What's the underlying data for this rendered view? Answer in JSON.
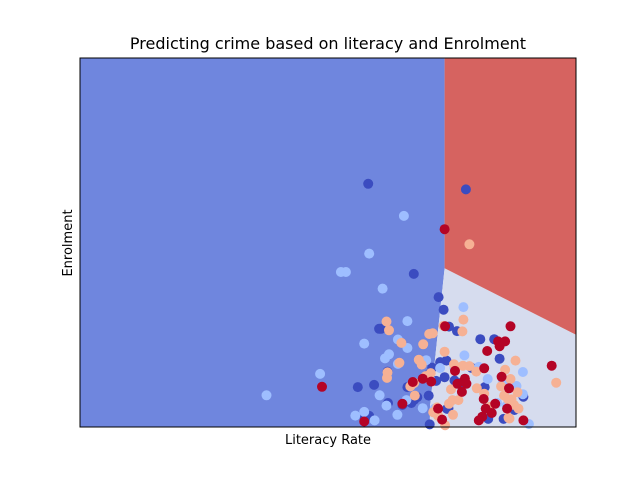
{
  "chart_data": {
    "type": "scatter",
    "title": "Predicting crime based on literacy and Enrolment",
    "xlabel": "Literacy Rate",
    "ylabel": "Enrolment",
    "ticks_shown": false,
    "grid": false,
    "legend": "none",
    "xlim": [
      0,
      100
    ],
    "ylim": [
      0,
      100
    ],
    "colors": {
      "region_low": "#6f86de",
      "region_mid": "#d6dcee",
      "region_high": "#d66360",
      "class_0": "#3b4cc0",
      "class_1": "#9ebeff",
      "class_2": "#f6b194",
      "class_3": "#b40426"
    },
    "decision_regions": [
      {
        "name": "low",
        "color_key": "region_low",
        "polygon": [
          [
            0,
            0
          ],
          [
            70.5,
            0
          ],
          [
            70.6,
            6
          ],
          [
            71.4,
            16
          ],
          [
            73.5,
            43
          ],
          [
            73.5,
            100
          ],
          [
            0,
            100
          ]
        ]
      },
      {
        "name": "mid",
        "color_key": "region_mid",
        "polygon": [
          [
            70.5,
            0
          ],
          [
            100,
            0
          ],
          [
            100,
            25
          ],
          [
            73.5,
            43
          ],
          [
            71.4,
            16
          ],
          [
            70.6,
            6
          ]
        ]
      },
      {
        "name": "high",
        "color_key": "region_high",
        "polygon": [
          [
            73.5,
            43
          ],
          [
            100,
            25
          ],
          [
            100,
            100
          ],
          [
            73.5,
            100
          ]
        ]
      }
    ],
    "series": [
      {
        "class": 0,
        "color_key": "class_0",
        "points": [
          [
            58.1,
            65.9
          ],
          [
            67.3,
            41.5
          ],
          [
            77.8,
            64.4
          ],
          [
            60.3,
            26.6
          ],
          [
            60.7,
            26.6
          ],
          [
            56.0,
            10.8
          ],
          [
            59.3,
            11.4
          ],
          [
            62.1,
            6.5
          ],
          [
            58.3,
            3.0
          ],
          [
            57.3,
            3.0
          ],
          [
            67.4,
            7.4
          ],
          [
            66.8,
            6.5
          ],
          [
            71.0,
            16.1
          ],
          [
            72.6,
            17.6
          ],
          [
            76.0,
            26.0
          ],
          [
            73.3,
            31.8
          ],
          [
            72.3,
            35.2
          ],
          [
            73.9,
            18.0
          ],
          [
            75.5,
            12.6
          ],
          [
            74.0,
            4.9
          ],
          [
            74.3,
            5.1
          ],
          [
            77.0,
            12.1
          ],
          [
            80.7,
            23.8
          ],
          [
            84.6,
            18.5
          ],
          [
            89.4,
            8.2
          ],
          [
            83.0,
            3.8
          ],
          [
            82.3,
            2.2
          ],
          [
            87.6,
            4.6
          ],
          [
            85.4,
            2.2
          ],
          [
            70.5,
            0.7
          ],
          [
            73.5,
            13.5
          ],
          [
            66.0,
            10.8
          ],
          [
            68.0,
            8.1
          ],
          [
            70.5,
            14.5
          ],
          [
            81.6,
            10.8
          ],
          [
            83.5,
            23.8
          ],
          [
            79.0,
            16.0
          ],
          [
            74.4,
            27.2
          ],
          [
            62.0,
            15.0
          ],
          [
            70.3,
            8.5
          ],
          [
            65.0,
            6.0
          ],
          [
            71.8,
            12.5
          ]
        ]
      },
      {
        "class": 1,
        "color_key": "class_1",
        "points": [
          [
            65.3,
            57.2
          ],
          [
            58.3,
            47.0
          ],
          [
            53.6,
            42.0
          ],
          [
            52.6,
            42.0
          ],
          [
            61.0,
            37.5
          ],
          [
            57.3,
            22.6
          ],
          [
            66.0,
            28.7
          ],
          [
            61.5,
            18.6
          ],
          [
            62.3,
            19.7
          ],
          [
            66.0,
            21.4
          ],
          [
            48.4,
            14.4
          ],
          [
            64.1,
            17.1
          ],
          [
            37.6,
            8.6
          ],
          [
            65.8,
            7.3
          ],
          [
            69.1,
            5.1
          ],
          [
            57.3,
            4.1
          ],
          [
            55.5,
            3.1
          ],
          [
            60.4,
            8.6
          ],
          [
            61.8,
            5.8
          ],
          [
            64.0,
            3.3
          ],
          [
            59.4,
            1.8
          ],
          [
            71.5,
            5.0
          ],
          [
            70.6,
            12.8
          ],
          [
            69.8,
            18.1
          ],
          [
            77.3,
            32.5
          ],
          [
            77.5,
            19.4
          ],
          [
            75.5,
            16.0
          ],
          [
            80.4,
            16.3
          ],
          [
            82.2,
            13.0
          ],
          [
            85.2,
            11.8
          ],
          [
            84.1,
            6.5
          ],
          [
            86.0,
            5.8
          ],
          [
            88.0,
            11.1
          ],
          [
            89.3,
            14.9
          ],
          [
            89.3,
            8.9
          ],
          [
            90.5,
            0.8
          ],
          [
            72.6,
            16.0
          ],
          [
            64.1,
            23.7
          ],
          [
            67.2,
            11.8
          ]
        ]
      },
      {
        "class": 2,
        "color_key": "class_2",
        "points": [
          [
            78.5,
            49.5
          ],
          [
            77.1,
            25.9
          ],
          [
            69.2,
            22.4
          ],
          [
            73.3,
            27.4
          ],
          [
            73.5,
            20.4
          ],
          [
            75.4,
            17.0
          ],
          [
            77.2,
            16.6
          ],
          [
            77.3,
            29.1
          ],
          [
            71.1,
            25.4
          ],
          [
            70.4,
            25.2
          ],
          [
            68.9,
            16.9
          ],
          [
            69.7,
            13.8
          ],
          [
            67.4,
            12.0
          ],
          [
            66.6,
            11.0
          ],
          [
            67.5,
            8.5
          ],
          [
            62.0,
            14.8
          ],
          [
            61.9,
            13.3
          ],
          [
            64.4,
            17.4
          ],
          [
            61.8,
            28.6
          ],
          [
            62.3,
            26.2
          ],
          [
            64.8,
            22.8
          ],
          [
            68.3,
            18.2
          ],
          [
            70.7,
            14.6
          ],
          [
            74.8,
            10.2
          ],
          [
            76.3,
            7.3
          ],
          [
            75.1,
            7.3
          ],
          [
            74.4,
            6.3
          ],
          [
            75.2,
            3.3
          ],
          [
            72.2,
            3.0
          ],
          [
            72.0,
            5.3
          ],
          [
            71.2,
            4.0
          ],
          [
            73.6,
            0.5
          ],
          [
            80.0,
            10.5
          ],
          [
            81.5,
            9.0
          ],
          [
            82.7,
            5.5
          ],
          [
            79.9,
            15.0
          ],
          [
            84.9,
            11.0
          ],
          [
            85.5,
            8.5
          ],
          [
            86.3,
            7.5
          ],
          [
            87.0,
            7.5
          ],
          [
            87.5,
            6.0
          ],
          [
            88.4,
            5.0
          ],
          [
            88.2,
            9.4
          ],
          [
            86.8,
            13.0
          ],
          [
            86.4,
            2.5
          ],
          [
            86.6,
            2.3
          ],
          [
            85.7,
            15.5
          ],
          [
            87.8,
            18.0
          ],
          [
            96.0,
            12.0
          ],
          [
            78.5,
            16.5
          ]
        ]
      },
      {
        "class": 3,
        "color_key": "class_3",
        "points": [
          [
            73.5,
            53.6
          ],
          [
            73.6,
            27.3
          ],
          [
            84.3,
            23.2
          ],
          [
            85.7,
            23.2
          ],
          [
            84.6,
            21.9
          ],
          [
            81.5,
            15.9
          ],
          [
            75.6,
            15.2
          ],
          [
            77.6,
            13.1
          ],
          [
            76.1,
            11.7
          ],
          [
            77.9,
            11.7
          ],
          [
            70.8,
            12.3
          ],
          [
            65.0,
            6.3
          ],
          [
            57.3,
            1.5
          ],
          [
            48.8,
            10.9
          ],
          [
            67.1,
            12.2
          ],
          [
            69.1,
            13.1
          ],
          [
            81.4,
            7.6
          ],
          [
            81.8,
            5.0
          ],
          [
            81.1,
            2.8
          ],
          [
            80.4,
            1.8
          ],
          [
            86.5,
            10.5
          ],
          [
            86.1,
            5.0
          ],
          [
            83.0,
            3.8
          ],
          [
            89.4,
            1.8
          ],
          [
            95.1,
            16.6
          ],
          [
            83.7,
            6.3
          ],
          [
            72.2,
            5.0
          ],
          [
            73.0,
            2.0
          ],
          [
            85.0,
            13.6
          ],
          [
            86.8,
            27.3
          ],
          [
            77.0,
            9.5
          ],
          [
            82.1,
            20.6
          ]
        ]
      }
    ]
  }
}
